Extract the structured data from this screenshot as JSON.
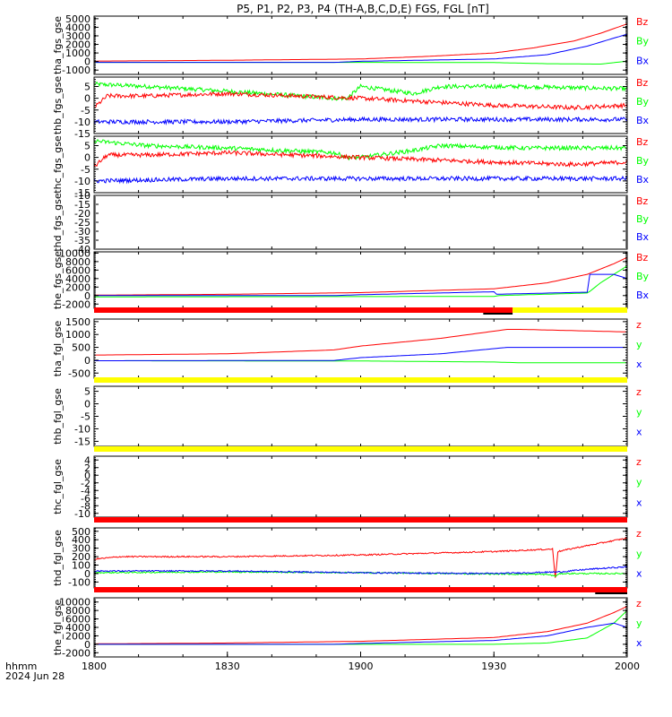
{
  "title": "P5, P1, P2, P3, P4 (TH-A,B,C,D,E) FGS, FGL [nT]",
  "footer": {
    "time_unit": "hhmm",
    "date": "2024 Jun 28"
  },
  "colors": {
    "x": "#0000ff",
    "y": "#00ff00",
    "z": "#ff0000",
    "bar_red": "#ff0000",
    "bar_yellow": "#ffff00",
    "bar_black": "#000000"
  },
  "chart_data": {
    "type": "line",
    "x_axis": {
      "range": [
        "1800",
        "2000"
      ],
      "ticks": [
        "1800",
        "1830",
        "1900",
        "1930",
        "2000"
      ],
      "tick_hours": [
        18.0,
        18.5,
        19.0,
        19.5,
        20.0
      ]
    },
    "panels": [
      {
        "id": "tha_fgs_gse",
        "ylabel": "tha_fgs_gse",
        "ylim": [
          -1500,
          5300
        ],
        "yticks": [
          5000,
          4000,
          3000,
          2000,
          1000,
          0,
          -1000
        ],
        "legend": [
          "Bz",
          "By",
          "Bx"
        ],
        "series": [
          {
            "name": "Bz",
            "color": "red",
            "t": [
              18.0,
              18.5,
              19.0,
              19.25,
              19.5,
              19.65,
              19.8,
              19.9,
              20.0
            ],
            "v": [
              50,
              150,
              300,
              600,
              1000,
              1600,
              2400,
              3300,
              4400
            ]
          },
          {
            "name": "By",
            "color": "green",
            "t": [
              18.0,
              19.0,
              19.5,
              19.7,
              19.9,
              20.0
            ],
            "v": [
              -100,
              -100,
              -120,
              -250,
              -300,
              50
            ]
          },
          {
            "name": "Bx",
            "color": "blue",
            "t": [
              18.0,
              18.9,
              19.0,
              19.5,
              19.7,
              19.85,
              20.0
            ],
            "v": [
              -100,
              -100,
              30,
              300,
              800,
              1800,
              3200
            ]
          }
        ]
      },
      {
        "id": "thb_fgs_gse",
        "ylabel": "thb_fgs_gse",
        "ylim": [
          -15,
          9
        ],
        "yticks": [
          5,
          0,
          -5,
          -10,
          -15
        ],
        "legend": [
          "Bz",
          "By",
          "Bx"
        ],
        "series": [
          {
            "name": "By",
            "color": "green",
            "t": [
              18.0,
              18.2,
              18.5,
              18.9,
              18.95,
              19.0,
              19.2,
              19.3,
              19.6,
              20.0
            ],
            "v": [
              6,
              5,
              3,
              0,
              0,
              5,
              2,
              5,
              5,
              4
            ]
          },
          {
            "name": "Bz",
            "color": "red",
            "t": [
              18.0,
              18.05,
              18.2,
              18.5,
              19.0,
              19.5,
              19.8,
              20.0
            ],
            "v": [
              -4,
              1,
              1,
              2,
              0,
              -3,
              -4,
              -3
            ]
          },
          {
            "name": "Bx",
            "color": "blue",
            "t": [
              18.0,
              18.5,
              19.0,
              19.5,
              20.0
            ],
            "v": [
              -10,
              -10,
              -9,
              -9,
              -9
            ]
          }
        ]
      },
      {
        "id": "thc_fgs_gse",
        "ylabel": "thc_fgs_gse",
        "ylim": [
          -15,
          9
        ],
        "yticks": [
          5,
          0,
          -5,
          -10,
          -15
        ],
        "legend": [
          "Bz",
          "By",
          "Bx"
        ],
        "series": [
          {
            "name": "By",
            "color": "green",
            "t": [
              18.0,
              18.2,
              18.5,
              18.9,
              18.95,
              19.0,
              19.2,
              19.3,
              19.6,
              20.0
            ],
            "v": [
              7,
              5,
              4,
              2,
              0,
              0,
              3,
              5,
              4,
              4
            ]
          },
          {
            "name": "Bz",
            "color": "red",
            "t": [
              18.0,
              18.05,
              18.2,
              18.5,
              19.0,
              19.5,
              19.8,
              20.0
            ],
            "v": [
              -4,
              1,
              1,
              2,
              0,
              -2,
              -3,
              -2
            ]
          },
          {
            "name": "Bx",
            "color": "blue",
            "t": [
              18.0,
              18.5,
              19.0,
              19.5,
              20.0
            ],
            "v": [
              -10,
              -9,
              -9,
              -9,
              -9
            ]
          }
        ]
      },
      {
        "id": "thd_fgs_gse",
        "ylabel": "thd_fgs_gse",
        "ylim": [
          -40,
          -10
        ],
        "yticks": [
          -10,
          -15,
          -20,
          -25,
          -30,
          -35,
          -40
        ],
        "legend": [
          "Bz",
          "By",
          "Bx"
        ],
        "series": []
      },
      {
        "id": "the_fgs_gse",
        "ylabel": "the_fgs_gse",
        "ylim": [
          -3000,
          10300
        ],
        "yticks": [
          10000,
          8000,
          6000,
          4000,
          2000,
          0,
          -2000
        ],
        "legend": [
          "Bz",
          "By",
          "Bx"
        ],
        "series": [
          {
            "name": "Bz",
            "color": "red",
            "t": [
              18.0,
              18.5,
              19.0,
              19.5,
              19.7,
              19.85,
              19.95,
              20.0
            ],
            "v": [
              100,
              300,
              700,
              1600,
              3000,
              5000,
              7500,
              9000
            ]
          },
          {
            "name": "By",
            "color": "green",
            "t": [
              18.0,
              19.5,
              19.52,
              19.85,
              19.86,
              19.9,
              20.0
            ],
            "v": [
              -300,
              -200,
              0,
              600,
              1000,
              3000,
              7000
            ]
          },
          {
            "name": "Bx",
            "color": "blue",
            "t": [
              18.0,
              18.9,
              19.0,
              19.5,
              19.5,
              19.85,
              19.86,
              19.95,
              20.0
            ],
            "v": [
              0,
              0,
              200,
              900,
              300,
              800,
              5000,
              5000,
              4000
            ]
          }
        ]
      },
      {
        "id": "tha_fgl_gse",
        "ylabel": "tha_fgl_gse",
        "ylim": [
          -700,
          1600
        ],
        "yticks": [
          1500,
          1000,
          500,
          0,
          -500
        ],
        "legend": [
          "z",
          "y",
          "x"
        ],
        "series": [
          {
            "name": "z",
            "color": "red",
            "t": [
              18.0,
              18.5,
              18.9,
              19.0,
              19.3,
              19.55,
              19.6,
              20.0
            ],
            "v": [
              200,
              250,
              400,
              550,
              850,
              1200,
              1200,
              1100
            ]
          },
          {
            "name": "y",
            "color": "green",
            "t": [
              18.0,
              19.0,
              19.5,
              19.6,
              20.0
            ],
            "v": [
              -20,
              -30,
              -70,
              -100,
              -100
            ]
          },
          {
            "name": "x",
            "color": "blue",
            "t": [
              18.0,
              18.9,
              19.0,
              19.3,
              19.55,
              19.6,
              20.0
            ],
            "v": [
              -20,
              -10,
              100,
              250,
              500,
              500,
              500
            ]
          }
        ]
      },
      {
        "id": "thb_fgl_gse",
        "ylabel": "thb_fgl_gse",
        "ylim": [
          -17,
          7
        ],
        "yticks": [
          5,
          0,
          -5,
          -10,
          -15
        ],
        "legend": [
          "z",
          "y",
          "x"
        ],
        "series": []
      },
      {
        "id": "thc_fgl_gse",
        "ylabel": "thc_fgl_gse",
        "ylim": [
          -11,
          5
        ],
        "yticks": [
          4,
          2,
          0,
          -2,
          -4,
          -6,
          -8,
          -10
        ],
        "legend": [
          "z",
          "y",
          "x"
        ],
        "series": []
      },
      {
        "id": "thd_fgl_gse",
        "ylabel": "thd_fgl_gse",
        "ylim": [
          -170,
          540
        ],
        "yticks": [
          500,
          400,
          300,
          200,
          100,
          0,
          -100
        ],
        "legend": [
          "z",
          "y",
          "x"
        ],
        "series": [
          {
            "name": "z",
            "color": "red",
            "t": [
              18.0,
              18.1,
              18.5,
              19.0,
              19.5,
              19.72,
              19.73,
              19.74,
              19.8,
              20.0
            ],
            "v": [
              170,
              200,
              200,
              220,
              260,
              290,
              -50,
              260,
              300,
              420
            ]
          },
          {
            "name": "y",
            "color": "green",
            "t": [
              18.0,
              18.5,
              19.0,
              19.7,
              19.73,
              19.75,
              20.0
            ],
            "v": [
              10,
              20,
              10,
              -10,
              -30,
              0,
              0
            ]
          },
          {
            "name": "x",
            "color": "blue",
            "t": [
              18.0,
              18.5,
              19.0,
              19.5,
              19.75,
              19.85,
              20.0
            ],
            "v": [
              30,
              30,
              10,
              0,
              20,
              50,
              80
            ]
          }
        ]
      },
      {
        "id": "the_fgl_gse",
        "ylabel": "the_fgl_gse",
        "ylim": [
          -3000,
          11000
        ],
        "yticks": [
          10000,
          8000,
          6000,
          4000,
          2000,
          0,
          -2000
        ],
        "legend": [
          "z",
          "y",
          "x"
        ],
        "series": [
          {
            "name": "z",
            "color": "red",
            "t": [
              18.0,
              18.5,
              19.0,
              19.5,
              19.7,
              19.85,
              19.95,
              20.0
            ],
            "v": [
              100,
              300,
              700,
              1600,
              3000,
              5000,
              7500,
              9000
            ]
          },
          {
            "name": "y",
            "color": "green",
            "t": [
              18.0,
              19.5,
              19.7,
              19.85,
              19.95,
              20.0
            ],
            "v": [
              0,
              0,
              300,
              1500,
              5000,
              8000
            ]
          },
          {
            "name": "x",
            "color": "blue",
            "t": [
              18.0,
              18.9,
              19.0,
              19.5,
              19.7,
              19.85,
              19.95,
              20.0
            ],
            "v": [
              0,
              0,
              200,
              900,
              2000,
              4000,
              5000,
              4000
            ]
          }
        ]
      }
    ],
    "status_bars": [
      {
        "after_panel": 4,
        "segments": [
          {
            "from": 18.0,
            "to": 19.57,
            "color": "red"
          },
          {
            "from": 19.57,
            "to": 20.0,
            "color": "yellow"
          }
        ],
        "black_tick": [
          19.46,
          19.57
        ]
      },
      {
        "after_panel": 5,
        "segments": [
          {
            "from": 18.0,
            "to": 20.0,
            "color": "yellow"
          }
        ]
      },
      {
        "after_panel": 6,
        "segments": [
          {
            "from": 18.0,
            "to": 20.0,
            "color": "yellow"
          }
        ]
      },
      {
        "after_panel": 7,
        "segments": [
          {
            "from": 18.0,
            "to": 20.0,
            "color": "red"
          }
        ]
      },
      {
        "after_panel": 8,
        "segments": [
          {
            "from": 18.0,
            "to": 20.0,
            "color": "red"
          }
        ],
        "black_tick": [
          19.88,
          20.0
        ]
      }
    ]
  }
}
